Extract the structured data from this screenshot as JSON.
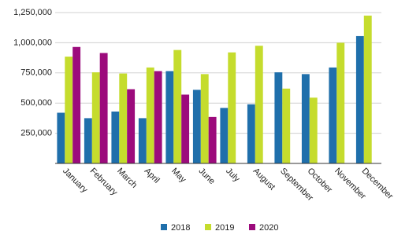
{
  "chart_data": {
    "type": "bar",
    "categories": [
      "January",
      "February",
      "March",
      "April",
      "May",
      "June",
      "July",
      "August",
      "September",
      "October",
      "November",
      "December"
    ],
    "series": [
      {
        "name": "2018",
        "color": "#1f6fab",
        "values": [
          420000,
          375000,
          430000,
          375000,
          765000,
          610000,
          460000,
          490000,
          755000,
          740000,
          795000,
          1055000
        ]
      },
      {
        "name": "2019",
        "color": "#c5dc2d",
        "values": [
          885000,
          755000,
          745000,
          795000,
          940000,
          740000,
          920000,
          975000,
          620000,
          545000,
          1000000,
          1225000
        ]
      },
      {
        "name": "2020",
        "color": "#9c0b7c",
        "values": [
          965000,
          915000,
          615000,
          765000,
          570000,
          385000,
          null,
          null,
          null,
          null,
          null,
          null
        ]
      }
    ],
    "ylim": [
      0,
      1250000
    ],
    "yticks": [
      {
        "value": 250000,
        "label": "250,000"
      },
      {
        "value": 500000,
        "label": "500,000"
      },
      {
        "value": 750000,
        "label": "750,000"
      },
      {
        "value": 1000000,
        "label": "1,000,000"
      },
      {
        "value": 1250000,
        "label": "1,250,000"
      }
    ],
    "grid": true,
    "legend": "bottom"
  }
}
